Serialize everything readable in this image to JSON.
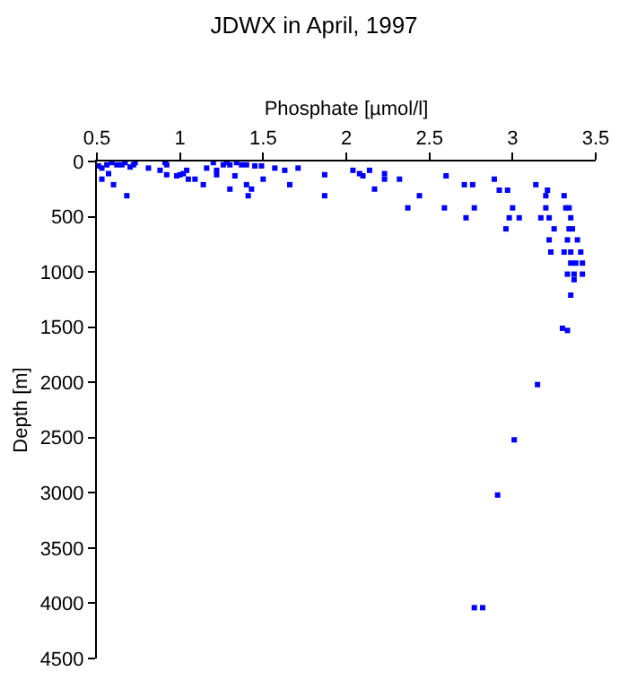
{
  "chart_data": {
    "type": "scatter",
    "title": "JDWX in April, 1997",
    "xlabel": "Phosphate [µmol/l]",
    "ylabel": "Depth [m]",
    "x": [
      0.51,
      0.53,
      0.53,
      0.56,
      0.57,
      0.59,
      0.6,
      0.62,
      0.65,
      0.67,
      0.68,
      0.7,
      0.72,
      0.73,
      0.81,
      0.88,
      0.91,
      0.92,
      0.92,
      0.98,
      1.0,
      1.02,
      1.04,
      1.05,
      1.09,
      1.14,
      1.16,
      1.2,
      1.22,
      1.22,
      1.26,
      1.28,
      1.3,
      1.3,
      1.33,
      1.34,
      1.37,
      1.4,
      1.4,
      1.41,
      1.43,
      1.45,
      1.49,
      1.5,
      1.57,
      1.63,
      1.66,
      1.71,
      1.87,
      1.87,
      2.04,
      2.08,
      2.1,
      2.14,
      2.17,
      2.23,
      2.23,
      2.32,
      2.37,
      2.44,
      2.59,
      2.6,
      2.71,
      2.72,
      2.76,
      2.77,
      2.89,
      2.92,
      2.96,
      2.97,
      2.98,
      3.0,
      3.04,
      3.14,
      3.17,
      3.2,
      3.2,
      3.21,
      3.22,
      3.22,
      3.23,
      3.25,
      3.31,
      3.31,
      3.3,
      3.32,
      3.33,
      3.33,
      3.34,
      3.34,
      3.35,
      3.35,
      3.35,
      3.33,
      3.36,
      3.37,
      3.35,
      3.39,
      3.38,
      3.41,
      3.42,
      3.42,
      3.37,
      3.15,
      3.01,
      2.91,
      2.77,
      2.82
    ],
    "values": [
      40,
      60,
      160,
      30,
      110,
      10,
      210,
      30,
      30,
      10,
      310,
      50,
      30,
      10,
      60,
      80,
      10,
      30,
      120,
      130,
      120,
      110,
      80,
      160,
      160,
      210,
      60,
      10,
      80,
      120,
      30,
      10,
      30,
      250,
      130,
      10,
      30,
      30,
      210,
      310,
      250,
      40,
      40,
      160,
      60,
      80,
      210,
      60,
      120,
      310,
      80,
      110,
      130,
      80,
      250,
      110,
      160,
      160,
      420,
      310,
      420,
      130,
      210,
      510,
      210,
      420,
      160,
      260,
      610,
      260,
      510,
      420,
      510,
      210,
      510,
      310,
      420,
      260,
      710,
      510,
      820,
      610,
      310,
      820,
      1510,
      420,
      710,
      1530,
      420,
      610,
      510,
      820,
      920,
      1020,
      610,
      1070,
      1210,
      710,
      920,
      820,
      920,
      1020,
      1020,
      2020,
      2520,
      3020,
      4040,
      4040
    ],
    "color": "#0000ff",
    "marker": "square",
    "grid": false,
    "xlim": [
      0.5,
      3.5
    ],
    "xticks": [
      0.5,
      1,
      1.5,
      2,
      2.5,
      3,
      3.5
    ],
    "ylim": [
      4500,
      0
    ],
    "yticks": [
      0,
      500,
      1000,
      1500,
      2000,
      2500,
      3000,
      3500,
      4000,
      4500
    ]
  }
}
